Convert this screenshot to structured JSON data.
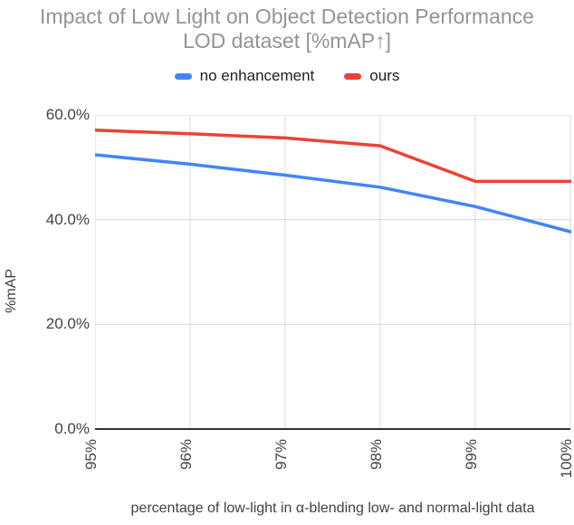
{
  "title": {
    "line1": "Impact of Low Light on Object Detection Performance",
    "line2": "LOD dataset [%mAP↑]"
  },
  "legend": [
    {
      "label": "no enhancement",
      "color": "#4285F4"
    },
    {
      "label": "ours",
      "color": "#EA4335"
    }
  ],
  "axes": {
    "y_title": "%mAP",
    "x_title": "percentage of low-light in α-blending low- and normal-light data",
    "y_ticks": [
      {
        "value": 0,
        "label": "0.0%"
      },
      {
        "value": 20,
        "label": "20.0%"
      },
      {
        "value": 40,
        "label": "40.0%"
      },
      {
        "value": 60,
        "label": "60.0%"
      }
    ],
    "x_ticks": [
      {
        "value": 95,
        "label": "95%"
      },
      {
        "value": 96,
        "label": "96%"
      },
      {
        "value": 97,
        "label": "97%"
      },
      {
        "value": 98,
        "label": "98%"
      },
      {
        "value": 99,
        "label": "99%"
      },
      {
        "value": 100,
        "label": "100%"
      }
    ]
  },
  "chart_data": {
    "type": "line",
    "title": "Impact of Low Light on Object Detection Performance LOD dataset [%mAP↑]",
    "xlabel": "percentage of low-light in α-blending low- and normal-light data",
    "ylabel": "%mAP",
    "x": [
      95,
      96,
      97,
      98,
      99,
      100
    ],
    "x_tick_labels": [
      "95%",
      "96%",
      "97%",
      "98%",
      "99%",
      "100%"
    ],
    "y_tick_labels": [
      "0.0%",
      "20.0%",
      "40.0%",
      "60.0%"
    ],
    "series": [
      {
        "name": "no enhancement",
        "color": "#4285F4",
        "values": [
          52.4,
          50.6,
          48.5,
          46.2,
          42.5,
          37.7
        ]
      },
      {
        "name": "ours",
        "color": "#EA4335",
        "values": [
          57.1,
          56.4,
          55.6,
          54.1,
          47.3,
          47.3
        ]
      }
    ],
    "xlim": [
      95,
      100
    ],
    "ylim": [
      0,
      60
    ],
    "grid": true,
    "legend_position": "top"
  },
  "colors": {
    "grid": "#dadada",
    "baseline": "#333333",
    "tick_text": "#424242",
    "title_text": "#949494",
    "legend_text": "#212121",
    "background": "#ffffff"
  }
}
